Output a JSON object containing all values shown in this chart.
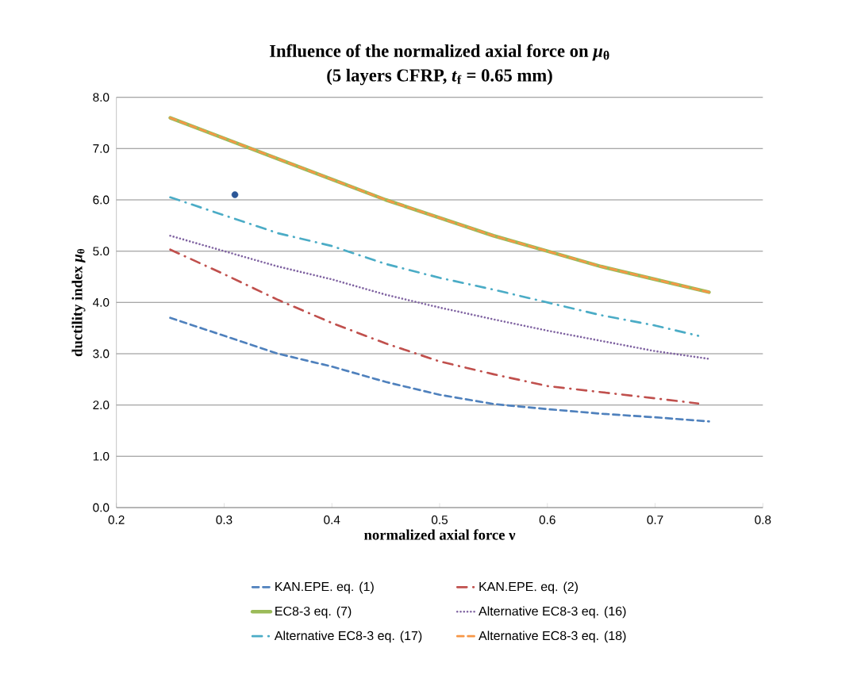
{
  "chart_data": {
    "type": "line",
    "title": "Influence of the normalized axial force on *μ*$_{θ}$",
    "subtitle": "(5 layers CFRP, *t*$_{f}$ = 0.65 mm)",
    "xlabel": "normalized axial force ν",
    "ylabel": "ductility index *μ*$_{θ}$",
    "x": [
      0.25,
      0.3,
      0.35,
      0.4,
      0.45,
      0.5,
      0.55,
      0.6,
      0.65,
      0.7,
      0.75
    ],
    "series": [
      {
        "name": "KAN.EPE. eq. (1)",
        "color": "#4f81bd",
        "line_style": "dashed",
        "values": [
          3.7,
          3.35,
          3.0,
          2.75,
          2.45,
          2.2,
          2.02,
          1.92,
          1.83,
          1.76,
          1.68
        ]
      },
      {
        "name": "KAN.EPE. eq. (2)",
        "color": "#c0504d",
        "line_style": "dashdot",
        "x": [
          0.25,
          0.3,
          0.35,
          0.4,
          0.45,
          0.5,
          0.55,
          0.6,
          0.65,
          0.7,
          0.74
        ],
        "values": [
          5.03,
          4.55,
          4.05,
          3.6,
          3.2,
          2.85,
          2.6,
          2.37,
          2.25,
          2.13,
          2.03
        ]
      },
      {
        "name": "EC8-3 eq. (7)",
        "color": "#9bbb59",
        "line_style": "solid",
        "values": [
          7.6,
          7.2,
          6.8,
          6.4,
          6.0,
          5.65,
          5.3,
          5.0,
          4.7,
          4.45,
          4.2
        ]
      },
      {
        "name": "Alternative EC8-3 eq. (16)",
        "color": "#8064a2",
        "line_style": "dotted",
        "values": [
          5.3,
          5.0,
          4.7,
          4.45,
          4.15,
          3.9,
          3.67,
          3.45,
          3.25,
          3.05,
          2.9
        ]
      },
      {
        "name": "Alternative EC8-3 eq. (17)",
        "color": "#4bacc6",
        "line_style": "dashdot",
        "x": [
          0.25,
          0.3,
          0.35,
          0.4,
          0.45,
          0.5,
          0.55,
          0.6,
          0.65,
          0.7,
          0.74
        ],
        "values": [
          6.05,
          5.7,
          5.35,
          5.1,
          4.75,
          4.48,
          4.25,
          4.0,
          3.75,
          3.55,
          3.35
        ]
      },
      {
        "name": "Alternative EC8-3 eq. (18)",
        "color": "#f79646",
        "line_style": "dashed",
        "values": [
          7.6,
          7.2,
          6.8,
          6.4,
          6.0,
          5.65,
          5.3,
          5.0,
          4.7,
          4.45,
          4.2
        ]
      },
      {
        "type": "scatter",
        "color": "#2b5797",
        "marker": "circle",
        "x": [
          0.31
        ],
        "values": [
          6.1
        ]
      }
    ],
    "xlim": [
      0.2,
      0.8
    ],
    "xticks": [
      0.2,
      0.3,
      0.4,
      0.5,
      0.6,
      0.7,
      0.8
    ],
    "ylim": [
      0,
      8
    ],
    "yticks": [
      {
        "value": 0,
        "label": "0.0"
      },
      {
        "value": 1,
        "label": "1.0"
      },
      {
        "value": 2,
        "label": "2.0"
      },
      {
        "value": 3,
        "label": "3.0"
      },
      {
        "value": 4,
        "label": "4.0"
      },
      {
        "value": 5,
        "label": "5.0"
      },
      {
        "value": 6,
        "label": "6.0"
      },
      {
        "value": 7,
        "label": "7.0"
      },
      {
        "value": 8,
        "label": "8.0"
      }
    ],
    "grid": "y",
    "legend": "bottom"
  }
}
